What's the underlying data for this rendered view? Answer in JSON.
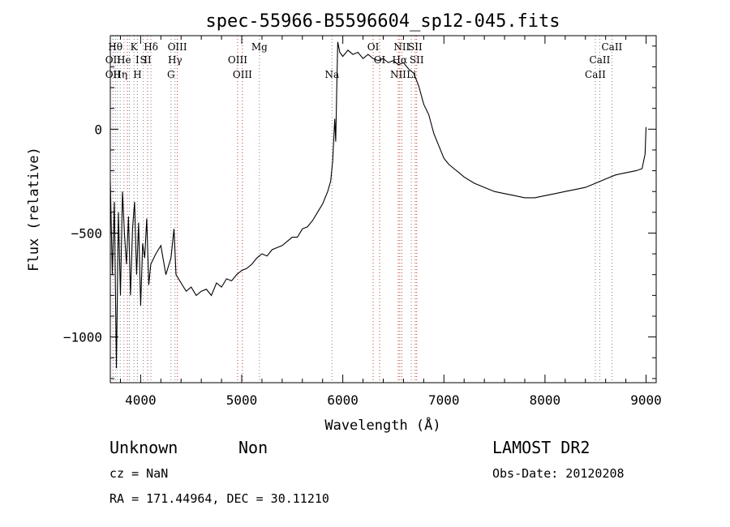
{
  "chart_data": {
    "type": "line",
    "title": "spec-55966-B5596604_sp12-045.fits",
    "xlabel": "Wavelength (Å)",
    "ylabel": "Flux (relative)",
    "xlim": [
      3700,
      9100
    ],
    "ylim": [
      -1220,
      450
    ],
    "x_ticks": [
      4000,
      5000,
      6000,
      7000,
      8000,
      9000
    ],
    "y_ticks": [
      0,
      -500,
      -1000
    ],
    "x_tick_labels": [
      "4000",
      "5000",
      "6000",
      "7000",
      "8000",
      "9000"
    ],
    "y_tick_labels": [
      "0",
      "−500",
      "−1000"
    ],
    "series": [
      {
        "color": "#000000",
        "points": [
          [
            3700,
            -250
          ],
          [
            3720,
            -700
          ],
          [
            3740,
            -350
          ],
          [
            3760,
            -1150
          ],
          [
            3780,
            -400
          ],
          [
            3800,
            -800
          ],
          [
            3820,
            -300
          ],
          [
            3840,
            -500
          ],
          [
            3860,
            -650
          ],
          [
            3880,
            -420
          ],
          [
            3900,
            -800
          ],
          [
            3920,
            -480
          ],
          [
            3940,
            -350
          ],
          [
            3960,
            -700
          ],
          [
            3980,
            -450
          ],
          [
            4000,
            -850
          ],
          [
            4020,
            -550
          ],
          [
            4040,
            -620
          ],
          [
            4060,
            -430
          ],
          [
            4080,
            -750
          ],
          [
            4100,
            -650
          ],
          [
            4150,
            -600
          ],
          [
            4200,
            -560
          ],
          [
            4250,
            -700
          ],
          [
            4300,
            -620
          ],
          [
            4330,
            -480
          ],
          [
            4350,
            -700
          ],
          [
            4400,
            -740
          ],
          [
            4450,
            -780
          ],
          [
            4500,
            -760
          ],
          [
            4550,
            -800
          ],
          [
            4600,
            -780
          ],
          [
            4650,
            -770
          ],
          [
            4700,
            -800
          ],
          [
            4750,
            -740
          ],
          [
            4800,
            -760
          ],
          [
            4850,
            -720
          ],
          [
            4900,
            -730
          ],
          [
            4950,
            -700
          ],
          [
            5000,
            -680
          ],
          [
            5050,
            -670
          ],
          [
            5100,
            -650
          ],
          [
            5150,
            -620
          ],
          [
            5200,
            -600
          ],
          [
            5250,
            -610
          ],
          [
            5300,
            -580
          ],
          [
            5350,
            -570
          ],
          [
            5400,
            -560
          ],
          [
            5450,
            -540
          ],
          [
            5500,
            -520
          ],
          [
            5550,
            -520
          ],
          [
            5600,
            -480
          ],
          [
            5650,
            -470
          ],
          [
            5700,
            -440
          ],
          [
            5750,
            -400
          ],
          [
            5800,
            -360
          ],
          [
            5850,
            -300
          ],
          [
            5880,
            -250
          ],
          [
            5900,
            -150
          ],
          [
            5920,
            50
          ],
          [
            5930,
            -60
          ],
          [
            5940,
            200
          ],
          [
            5950,
            420
          ],
          [
            5970,
            370
          ],
          [
            6000,
            350
          ],
          [
            6050,
            380
          ],
          [
            6100,
            360
          ],
          [
            6150,
            370
          ],
          [
            6200,
            340
          ],
          [
            6250,
            360
          ],
          [
            6300,
            340
          ],
          [
            6350,
            330
          ],
          [
            6400,
            340
          ],
          [
            6450,
            320
          ],
          [
            6500,
            330
          ],
          [
            6550,
            310
          ],
          [
            6600,
            320
          ],
          [
            6650,
            290
          ],
          [
            6700,
            270
          ],
          [
            6750,
            210
          ],
          [
            6800,
            120
          ],
          [
            6850,
            70
          ],
          [
            6900,
            -20
          ],
          [
            6950,
            -80
          ],
          [
            7000,
            -140
          ],
          [
            7050,
            -170
          ],
          [
            7100,
            -190
          ],
          [
            7150,
            -210
          ],
          [
            7200,
            -230
          ],
          [
            7300,
            -260
          ],
          [
            7400,
            -280
          ],
          [
            7500,
            -300
          ],
          [
            7600,
            -310
          ],
          [
            7700,
            -320
          ],
          [
            7800,
            -330
          ],
          [
            7900,
            -330
          ],
          [
            8000,
            -320
          ],
          [
            8100,
            -310
          ],
          [
            8200,
            -300
          ],
          [
            8300,
            -290
          ],
          [
            8400,
            -280
          ],
          [
            8500,
            -260
          ],
          [
            8600,
            -240
          ],
          [
            8700,
            -220
          ],
          [
            8800,
            -210
          ],
          [
            8900,
            -200
          ],
          [
            8960,
            -190
          ],
          [
            8990,
            -120
          ],
          [
            9000,
            10
          ]
        ]
      }
    ],
    "line_markers": [
      {
        "x": 3727,
        "color": "gray",
        "label": "OII",
        "row": 1
      },
      {
        "x": 3727,
        "color": "gray",
        "label": "OII",
        "row": 2
      },
      {
        "x": 3750,
        "color": "gray",
        "label": "Hθ",
        "row": 0
      },
      {
        "x": 3770,
        "color": "gray",
        "label": "",
        "row": 0
      },
      {
        "x": 3798,
        "color": "gray",
        "label": "Hη",
        "row": 2
      },
      {
        "x": 3835,
        "color": "gray",
        "label": "He",
        "row": 1
      },
      {
        "x": 3869,
        "color": "red",
        "label": "",
        "row": 0
      },
      {
        "x": 3889,
        "color": "gray",
        "label": "",
        "row": 0
      },
      {
        "x": 3934,
        "color": "gray",
        "label": "K",
        "row": 0
      },
      {
        "x": 3969,
        "color": "gray",
        "label": "H",
        "row": 2
      },
      {
        "x": 3968,
        "color": "gray",
        "label": "I",
        "row": 1
      },
      {
        "x": 4026,
        "color": "gray",
        "label": "S",
        "row": 1
      },
      {
        "x": 4069,
        "color": "red",
        "label": "II",
        "row": 1
      },
      {
        "x": 4102,
        "color": "gray",
        "label": "Hδ",
        "row": 0
      },
      {
        "x": 4300,
        "color": "gray",
        "label": "G",
        "row": 2
      },
      {
        "x": 4340,
        "color": "gray",
        "label": "Hγ",
        "row": 1
      },
      {
        "x": 4363,
        "color": "red",
        "label": "OIII",
        "row": 0
      },
      {
        "x": 4959,
        "color": "red",
        "label": "OIII",
        "row": 1
      },
      {
        "x": 5007,
        "color": "red",
        "label": "OIII",
        "row": 2
      },
      {
        "x": 5175,
        "color": "gray",
        "label": "Mg",
        "row": 0
      },
      {
        "x": 5893,
        "color": "gray",
        "label": "Na",
        "row": 2
      },
      {
        "x": 6300,
        "color": "red",
        "label": "OI",
        "row": 0
      },
      {
        "x": 6364,
        "color": "red",
        "label": "OI",
        "row": 1
      },
      {
        "x": 6548,
        "color": "red",
        "label": "NII",
        "row": 2
      },
      {
        "x": 6563,
        "color": "red",
        "label": "Hα",
        "row": 1
      },
      {
        "x": 6583,
        "color": "red",
        "label": "NII",
        "row": 0
      },
      {
        "x": 6678,
        "color": "gray",
        "label": "Li",
        "row": 2
      },
      {
        "x": 6716,
        "color": "red",
        "label": "SII",
        "row": 0
      },
      {
        "x": 6731,
        "color": "red",
        "label": "SII",
        "row": 1
      },
      {
        "x": 8498,
        "color": "gray",
        "label": "CaII",
        "row": 2
      },
      {
        "x": 8542,
        "color": "gray",
        "label": "CaII",
        "row": 1
      },
      {
        "x": 8662,
        "color": "gray",
        "label": "CaII",
        "row": 0
      }
    ]
  },
  "info": {
    "class": "Unknown",
    "subclass": "Non",
    "survey": "LAMOST DR2",
    "cz": "cz = NaN",
    "obs_date": "Obs-Date: 20120208",
    "radec": "RA = 171.44964, DEC =  30.11210"
  }
}
